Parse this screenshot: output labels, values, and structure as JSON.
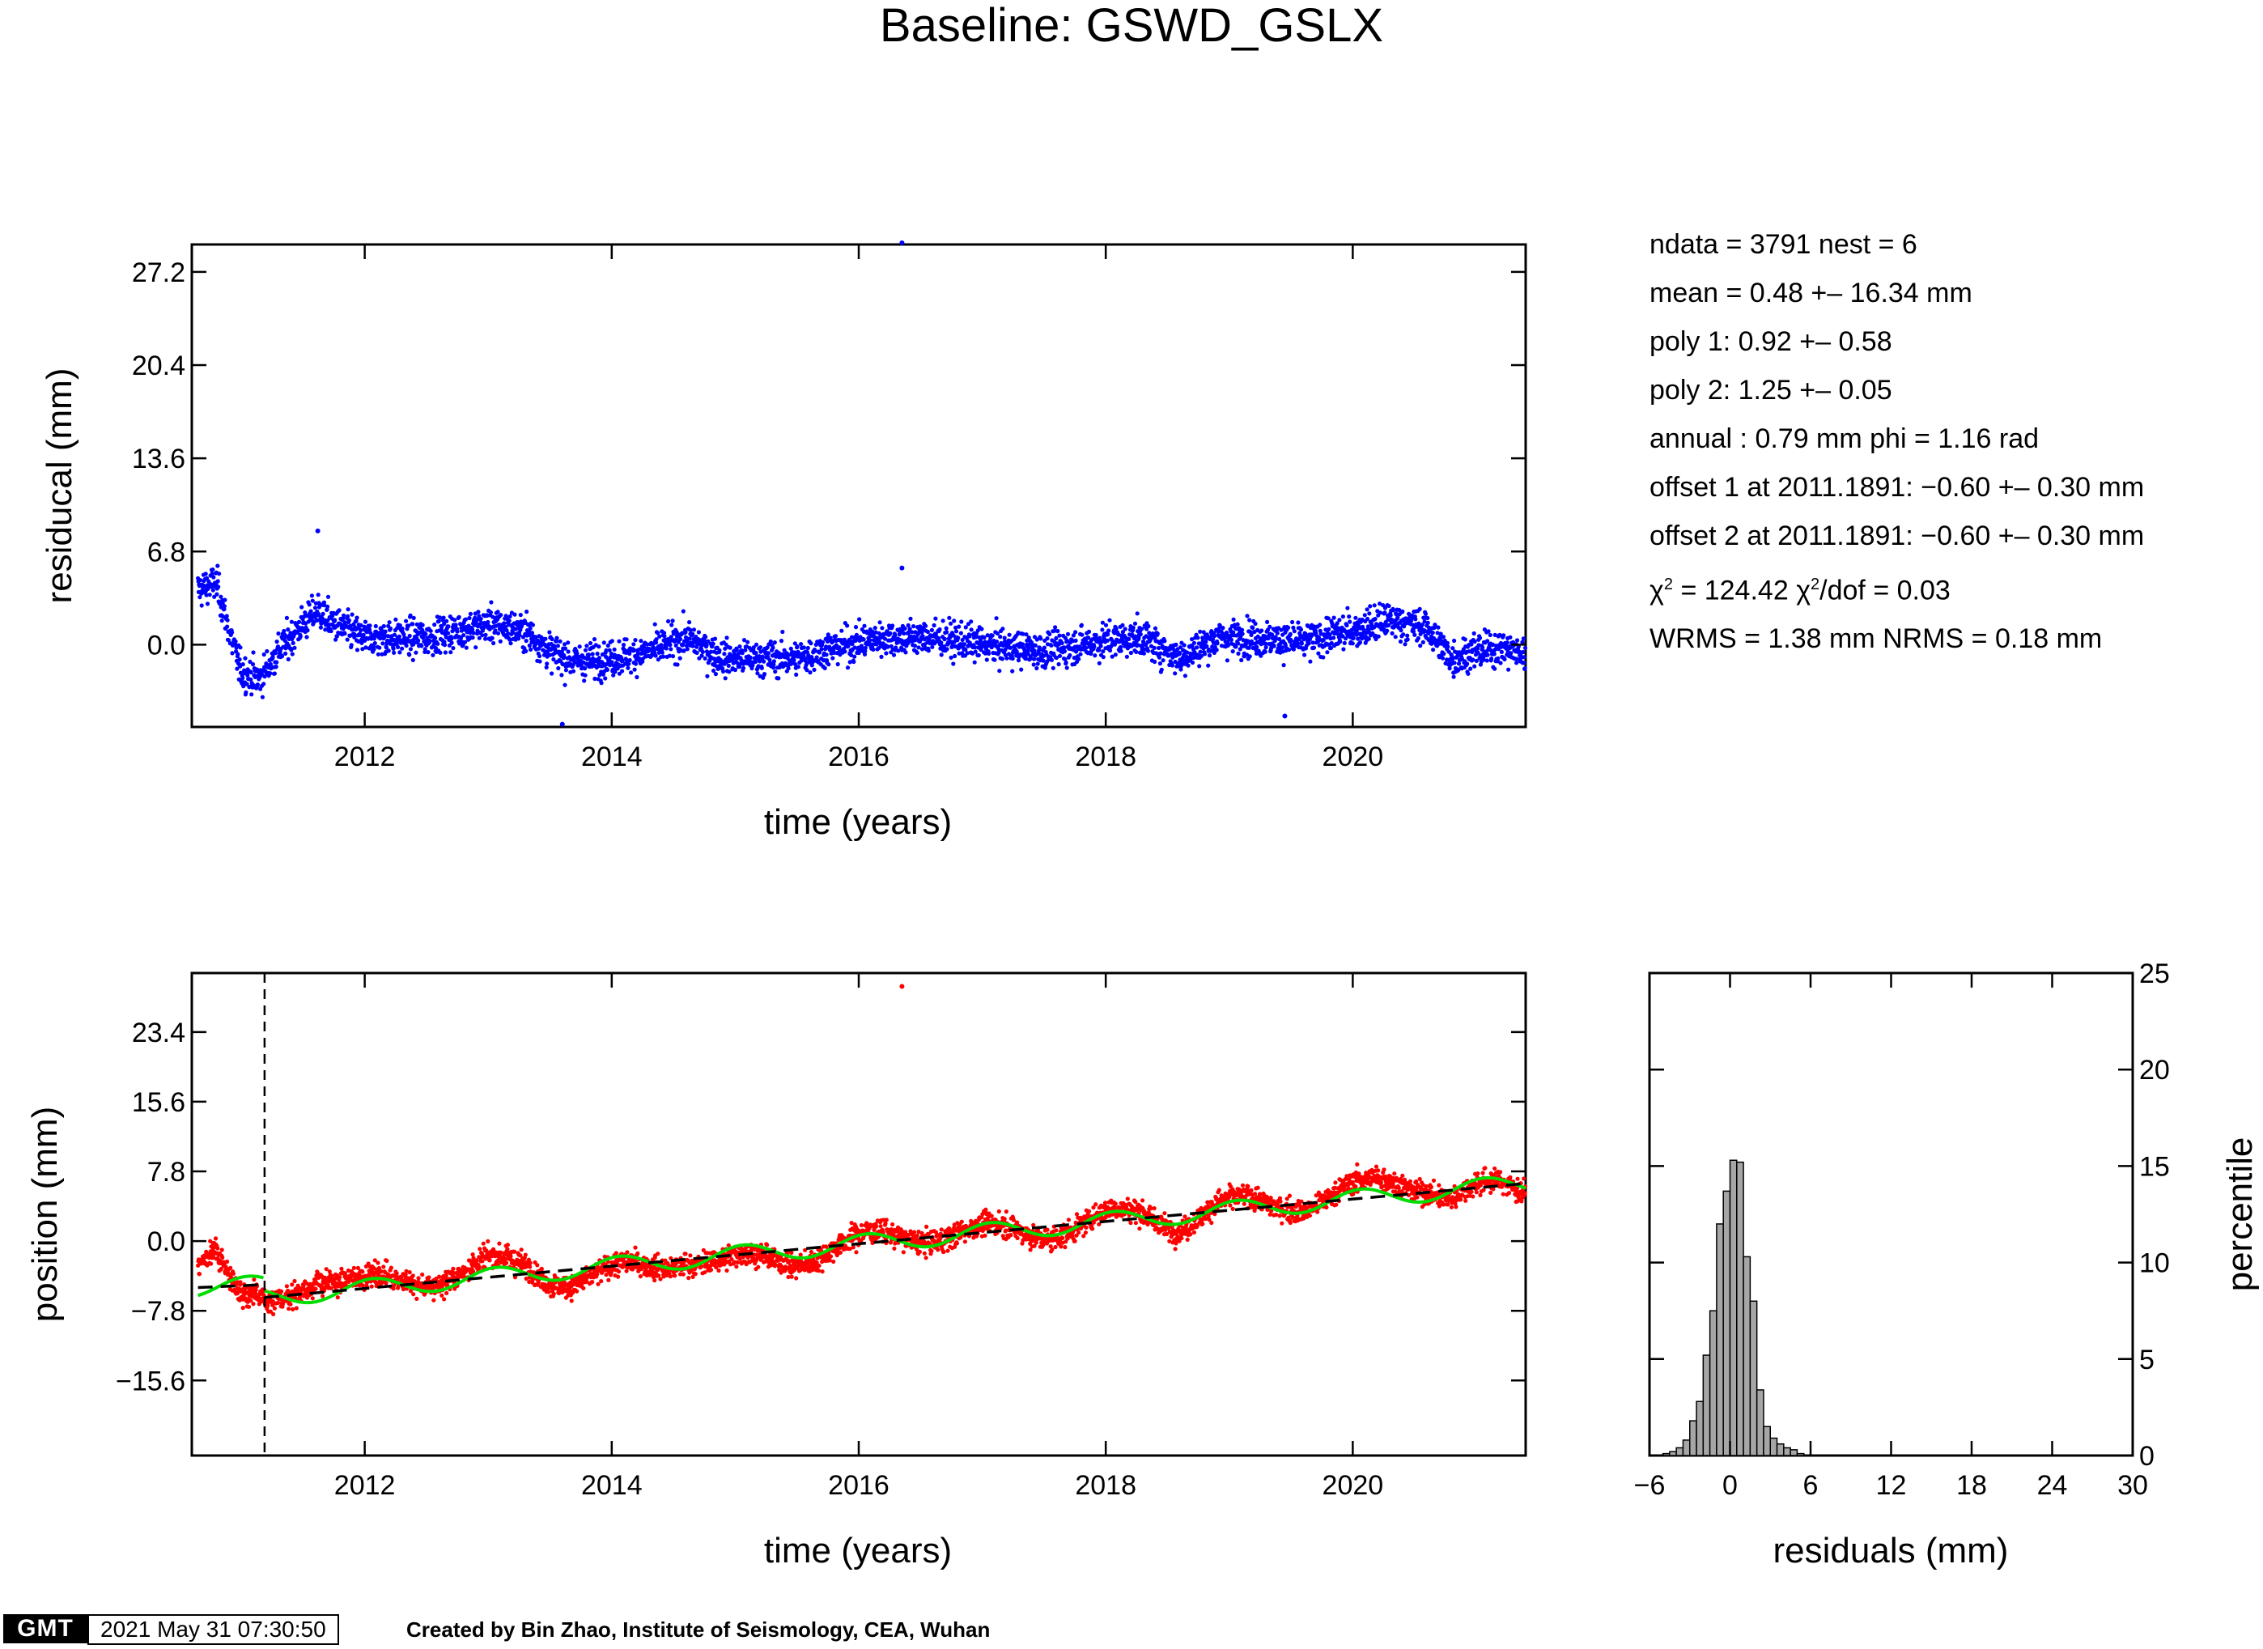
{
  "title": "Baseline: GSWD_GSLX",
  "stats": [
    "ndata = 3791  nest = 6",
    "mean = 0.48 +– 16.34 mm",
    "poly 1: 0.92 +– 0.58",
    "poly 2: 1.25 +– 0.05",
    "annual : 0.79 mm  phi = 1.16 rad",
    "offset 1 at 2011.1891: −0.60 +– 0.30 mm",
    "offset 2 at 2011.1891: −0.60 +– 0.30 mm",
    "= 124.42",
    "/dof = 0.03",
    "WRMS = 1.38 mm  NRMS = 0.18 mm"
  ],
  "chi_symbol": "χ",
  "chi_exponent": "2",
  "footer": {
    "logo": "GMT",
    "timestamp": "2021 May 31 07:30:50",
    "credit": "Created by Bin Zhao, Institute of Seismology, CEA, Wuhan"
  },
  "colors": {
    "residual_points": "#0000ff",
    "position_points": "#ff0000",
    "annual_fit": "#00dd00",
    "linear_trend": "#000000",
    "histogram_bars": "#a6a6a6"
  },
  "chart_data": [
    {
      "type": "scatter",
      "ylabel": "residucal (mm)",
      "xlabel": "time (years)",
      "xlim": [
        2010.6,
        2021.4
      ],
      "ylim": [
        -6.0,
        29.2
      ],
      "xticks": [
        2012,
        2014,
        2016,
        2018,
        2020
      ],
      "xtick_labels": [
        "2012",
        "2014",
        "2016",
        "2018",
        "2020"
      ],
      "yticks": [
        0.0,
        6.8,
        13.6,
        20.4,
        27.2
      ],
      "ytick_labels": [
        "0.0",
        "6.8",
        "13.6",
        "20.4",
        "27.2"
      ],
      "ndata": 3791,
      "residual_profile": {
        "x": [
          2010.65,
          2010.8,
          2010.9,
          2011.0,
          2011.15,
          2011.3,
          2011.5,
          2011.62,
          2011.75,
          2012.0,
          2012.5,
          2013.0,
          2013.3,
          2013.5,
          2013.7,
          2014.0,
          2014.3,
          2014.6,
          2014.9,
          2015.2,
          2015.5,
          2015.8,
          2016.2,
          2016.6,
          2017.0,
          2017.5,
          2018.0,
          2018.3,
          2018.6,
          2018.9,
          2019.2,
          2019.6,
          2020.0,
          2020.3,
          2020.6,
          2020.8,
          2021.0,
          2021.2,
          2021.4
        ],
        "y": [
          4.0,
          4.5,
          1.0,
          -2.0,
          -2.5,
          -0.5,
          1.5,
          2.5,
          1.5,
          0.5,
          0.5,
          1.5,
          1.0,
          -0.5,
          -1.2,
          -1.0,
          -0.5,
          0.5,
          -1.0,
          -1.0,
          -1.0,
          -0.2,
          0.5,
          0.5,
          0.0,
          -0.5,
          0.3,
          0.5,
          -1.0,
          0.5,
          0.5,
          0.2,
          1.0,
          1.8,
          1.2,
          -1.0,
          -0.5,
          -0.2,
          -0.8
        ]
      },
      "outliers": [
        {
          "x": 2016.35,
          "y": 29.5
        },
        {
          "x": 2011.62,
          "y": 8.3
        },
        {
          "x": 2016.35,
          "y": 5.6
        },
        {
          "x": 2013.6,
          "y": -5.8
        },
        {
          "x": 2019.45,
          "y": -5.2
        }
      ]
    },
    {
      "type": "scatter",
      "ylabel": "position (mm)",
      "xlabel": "time (years)",
      "xlim": [
        2010.6,
        2021.4
      ],
      "ylim": [
        -24.0,
        30.0
      ],
      "xticks": [
        2012,
        2014,
        2016,
        2018,
        2020
      ],
      "xtick_labels": [
        "2012",
        "2014",
        "2016",
        "2018",
        "2020"
      ],
      "yticks": [
        -15.6,
        -7.8,
        0.0,
        7.8,
        15.6,
        23.4
      ],
      "ytick_labels": [
        "−15.6",
        "−7.8",
        "0.0",
        "7.8",
        "15.6",
        "23.4"
      ],
      "offset_epoch": 2011.1891,
      "trend": {
        "intercept_at_2016": -0.3,
        "rate_mm_per_yr": 1.25,
        "pre_offset_level": -5.2
      },
      "annual_amplitude_mm": 0.79,
      "outliers": [
        {
          "x": 2016.35,
          "y": 28.5
        }
      ]
    },
    {
      "type": "bar",
      "xlabel": "residuals (mm)",
      "ylabel": "percentile",
      "xlim": [
        -6,
        30
      ],
      "ylim": [
        0,
        25
      ],
      "xticks": [
        -6,
        0,
        6,
        12,
        18,
        24,
        30
      ],
      "xtick_labels": [
        "−6",
        "0",
        "6",
        "12",
        "18",
        "24",
        "30"
      ],
      "yticks": [
        0,
        5,
        10,
        15,
        20,
        25
      ],
      "ytick_labels": [
        "0",
        "5",
        "10",
        "15",
        "20",
        "25"
      ],
      "bin_width": 0.5,
      "bin_starts": [
        -5.0,
        -4.5,
        -4.0,
        -3.5,
        -3.0,
        -2.5,
        -2.0,
        -1.5,
        -1.0,
        -0.5,
        0.0,
        0.5,
        1.0,
        1.5,
        2.0,
        2.5,
        3.0,
        3.5,
        4.0,
        4.5,
        5.0
      ],
      "values": [
        0.1,
        0.2,
        0.4,
        0.8,
        1.8,
        2.8,
        5.2,
        7.5,
        12.0,
        13.7,
        15.3,
        15.2,
        10.3,
        8.0,
        3.4,
        1.5,
        0.9,
        0.6,
        0.4,
        0.3,
        0.1
      ]
    }
  ]
}
